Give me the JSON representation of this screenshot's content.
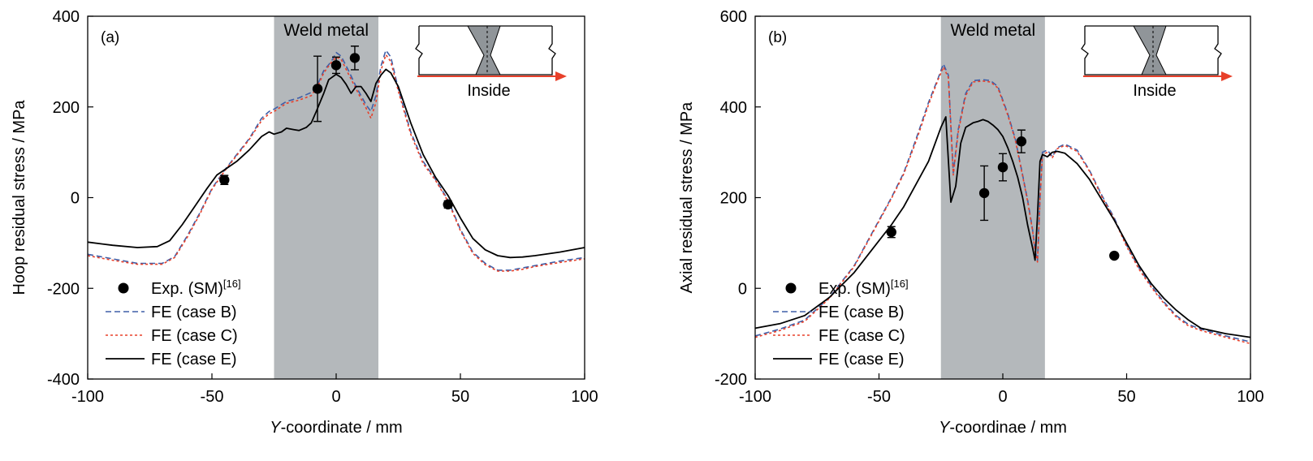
{
  "colors": {
    "weld_band": "#b4b8bb",
    "case_b": "#3f5fa8",
    "case_c": "#e8402a",
    "case_e": "#000000",
    "exp": "#000000",
    "arrow": "#e8402a"
  },
  "chart_data": [
    {
      "type": "line",
      "panel_label": "(a)",
      "xlabel_italic": "Y",
      "xlabel_rest": "-coordinate / mm",
      "ylabel": "Hoop residual stress / MPa",
      "xlim": [
        -100,
        100
      ],
      "ylim": [
        -400,
        400
      ],
      "xticks": [
        -100,
        -50,
        0,
        50,
        100
      ],
      "yticks": [
        -400,
        -200,
        0,
        200,
        400
      ],
      "band": {
        "x0": -25,
        "x1": 17,
        "label": "Weld metal"
      },
      "inset_label": "Inside",
      "legend": {
        "exp_label": "Exp. (SM)",
        "exp_ref": "[16]",
        "case_b": "FE (case B)",
        "case_c": "FE (case C)",
        "case_e": "FE (case E)"
      },
      "exp_points": [
        {
          "x": -45,
          "y": 39,
          "err": 10
        },
        {
          "x": -7.5,
          "y": 240,
          "err": 72
        },
        {
          "x": 0,
          "y": 292,
          "err": 18
        },
        {
          "x": 7.5,
          "y": 308,
          "err": 26
        },
        {
          "x": 45,
          "y": -15,
          "err": 8
        }
      ],
      "series": [
        {
          "key": "case_b",
          "x": [
            -100,
            -90,
            -80,
            -70,
            -65,
            -60,
            -55,
            -50,
            -45,
            -40,
            -35,
            -30,
            -27,
            -25,
            -20,
            -15,
            -10,
            -7,
            -5,
            -2,
            0,
            2,
            5,
            8,
            10,
            12,
            14,
            16,
            18,
            20,
            22,
            25,
            30,
            35,
            40,
            45,
            50,
            55,
            60,
            65,
            70,
            75,
            80,
            90,
            100
          ],
          "y": [
            -125,
            -135,
            -145,
            -145,
            -130,
            -85,
            -35,
            20,
            60,
            95,
            130,
            175,
            190,
            195,
            212,
            220,
            232,
            255,
            280,
            300,
            320,
            312,
            280,
            245,
            225,
            205,
            190,
            225,
            290,
            325,
            310,
            240,
            145,
            80,
            40,
            -5,
            -70,
            -120,
            -145,
            -160,
            -160,
            -155,
            -150,
            -140,
            -132
          ]
        },
        {
          "key": "case_c",
          "x": [
            -100,
            -90,
            -80,
            -70,
            -65,
            -60,
            -55,
            -50,
            -45,
            -40,
            -35,
            -30,
            -27,
            -25,
            -20,
            -15,
            -10,
            -7,
            -5,
            -2,
            0,
            2,
            5,
            8,
            10,
            12,
            14,
            16,
            18,
            20,
            22,
            25,
            30,
            35,
            40,
            45,
            50,
            55,
            60,
            65,
            70,
            75,
            80,
            90,
            100
          ],
          "y": [
            -128,
            -138,
            -147,
            -147,
            -132,
            -88,
            -38,
            18,
            58,
            93,
            128,
            170,
            185,
            190,
            208,
            215,
            225,
            250,
            275,
            298,
            310,
            305,
            272,
            240,
            218,
            198,
            175,
            210,
            280,
            315,
            300,
            235,
            140,
            75,
            38,
            -8,
            -73,
            -123,
            -148,
            -162,
            -162,
            -158,
            -152,
            -143,
            -135
          ]
        },
        {
          "key": "case_e",
          "x": [
            -100,
            -90,
            -80,
            -72,
            -67,
            -62,
            -57,
            -52,
            -48,
            -44,
            -40,
            -35,
            -30,
            -27,
            -25,
            -22,
            -20,
            -17,
            -15,
            -12,
            -10,
            -8,
            -5,
            -3,
            0,
            2,
            4,
            6,
            8,
            10,
            12,
            14,
            16,
            18,
            20,
            22,
            25,
            30,
            35,
            40,
            45,
            50,
            55,
            60,
            65,
            70,
            75,
            80,
            90,
            100
          ],
          "y": [
            -98,
            -105,
            -110,
            -108,
            -95,
            -60,
            -20,
            20,
            50,
            65,
            80,
            105,
            135,
            145,
            140,
            145,
            153,
            150,
            148,
            155,
            165,
            190,
            230,
            260,
            272,
            265,
            250,
            230,
            245,
            245,
            230,
            212,
            252,
            270,
            283,
            275,
            245,
            165,
            95,
            45,
            5,
            -45,
            -90,
            -115,
            -128,
            -132,
            -131,
            -128,
            -120,
            -110
          ]
        }
      ]
    },
    {
      "type": "line",
      "panel_label": "(b)",
      "xlabel_italic": "Y",
      "xlabel_rest": "-coordinae / mm",
      "ylabel": "Axial residual stress / MPa",
      "xlim": [
        -100,
        100
      ],
      "ylim": [
        -200,
        600
      ],
      "xticks": [
        -100,
        -50,
        0,
        50,
        100
      ],
      "yticks": [
        -200,
        0,
        200,
        400,
        600
      ],
      "band": {
        "x0": -25,
        "x1": 17,
        "label": "Weld metal"
      },
      "inset_label": "Inside",
      "legend": {
        "exp_label": "Exp. (SM)",
        "exp_ref": "[16]",
        "case_b": "FE (case B)",
        "case_c": "FE (case C)",
        "case_e": "FE (case E)"
      },
      "exp_points": [
        {
          "x": -45,
          "y": 124,
          "err": 12
        },
        {
          "x": -7.5,
          "y": 210,
          "err": 60
        },
        {
          "x": 0,
          "y": 267,
          "err": 30
        },
        {
          "x": 7.5,
          "y": 324,
          "err": 25
        },
        {
          "x": 45,
          "y": 72,
          "err": 0
        }
      ],
      "series": [
        {
          "key": "case_b",
          "x": [
            -100,
            -90,
            -80,
            -70,
            -60,
            -50,
            -45,
            -40,
            -35,
            -30,
            -26,
            -24,
            -22,
            -20,
            -18,
            -15,
            -12,
            -8,
            -5,
            -2,
            2,
            5,
            8,
            10,
            12,
            13,
            14,
            15,
            16,
            18,
            20,
            22,
            25,
            30,
            35,
            40,
            45,
            50,
            55,
            60,
            65,
            70,
            75,
            80,
            90,
            100
          ],
          "y": [
            -105,
            -90,
            -70,
            -20,
            50,
            150,
            200,
            255,
            330,
            410,
            465,
            495,
            470,
            255,
            350,
            430,
            458,
            460,
            458,
            445,
            385,
            330,
            250,
            195,
            130,
            85,
            60,
            200,
            300,
            305,
            290,
            310,
            318,
            305,
            260,
            205,
            155,
            95,
            45,
            5,
            -30,
            -60,
            -80,
            -90,
            -105,
            -118
          ]
        },
        {
          "key": "case_c",
          "x": [
            -100,
            -90,
            -80,
            -70,
            -60,
            -50,
            -45,
            -40,
            -35,
            -30,
            -26,
            -24,
            -22,
            -20,
            -18,
            -15,
            -12,
            -8,
            -5,
            -2,
            2,
            5,
            8,
            10,
            12,
            13,
            14,
            15,
            16,
            18,
            20,
            22,
            25,
            30,
            35,
            40,
            45,
            50,
            55,
            60,
            65,
            70,
            75,
            80,
            90,
            100
          ],
          "y": [
            -108,
            -93,
            -73,
            -22,
            48,
            148,
            198,
            252,
            325,
            405,
            462,
            488,
            465,
            250,
            345,
            425,
            455,
            457,
            455,
            442,
            382,
            327,
            248,
            192,
            128,
            82,
            58,
            195,
            295,
            300,
            288,
            308,
            315,
            302,
            258,
            202,
            152,
            92,
            42,
            2,
            -33,
            -63,
            -83,
            -93,
            -108,
            -122
          ]
        },
        {
          "key": "case_e",
          "x": [
            -100,
            -90,
            -80,
            -70,
            -60,
            -50,
            -45,
            -40,
            -35,
            -30,
            -27,
            -25,
            -23,
            -21,
            -19,
            -17,
            -15,
            -12,
            -10,
            -8,
            -6,
            -4,
            -2,
            0,
            2,
            4,
            6,
            8,
            10,
            12,
            13,
            14,
            15,
            16,
            18,
            20,
            22,
            25,
            30,
            35,
            40,
            45,
            50,
            55,
            60,
            65,
            70,
            75,
            80,
            90,
            100
          ],
          "y": [
            -88,
            -78,
            -60,
            -20,
            35,
            105,
            140,
            180,
            230,
            280,
            325,
            355,
            378,
            190,
            225,
            320,
            355,
            365,
            368,
            372,
            368,
            360,
            350,
            335,
            310,
            280,
            245,
            200,
            140,
            90,
            62,
            160,
            280,
            295,
            290,
            300,
            302,
            298,
            275,
            240,
            195,
            150,
            100,
            50,
            10,
            -22,
            -48,
            -70,
            -88,
            -100,
            -108
          ]
        }
      ]
    }
  ]
}
